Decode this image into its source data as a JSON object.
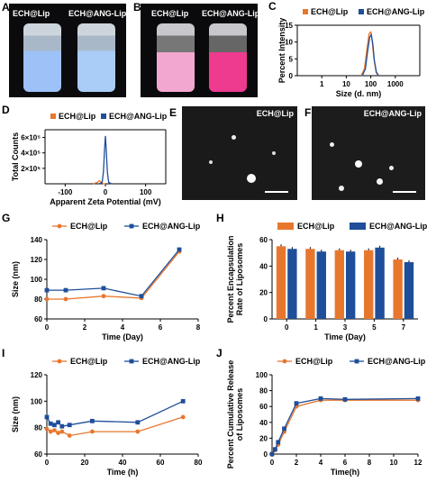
{
  "colors": {
    "lip": "#e8772e",
    "ang": "#1f4e9a"
  },
  "panels": {
    "A": {
      "letter": "A",
      "label_lip": "ECH@Lip",
      "label_ang": "ECH@ANG-Lip"
    },
    "B": {
      "letter": "B",
      "label_lip": "ECH@Lip",
      "label_ang": "ECH@ANG-Lip"
    },
    "E": {
      "letter": "E",
      "label": "ECH@Lip"
    },
    "F": {
      "letter": "F",
      "label": "ECH@ANG-Lip"
    }
  },
  "chart_data": [
    {
      "id": "C",
      "letter": "C",
      "type": "line",
      "xlabel": "Size (d. nm)",
      "ylabel": "Percent Intensity",
      "xscale": "log",
      "xlim": [
        0.1,
        10000
      ],
      "ylim": [
        0,
        15
      ],
      "xticks": [
        1,
        10,
        100,
        1000
      ],
      "xtick_labels": [
        "1",
        "10",
        "100",
        "1000"
      ],
      "yticks": [
        0,
        5,
        10,
        15
      ],
      "ytick_labels": [
        "0",
        "5",
        "10",
        "15"
      ],
      "legend": "top",
      "series": [
        {
          "name": "ECH@Lip",
          "x": [
            40,
            55,
            70,
            85,
            100,
            115,
            135,
            165,
            200
          ],
          "values": [
            0,
            2,
            8,
            12.5,
            13,
            10,
            5,
            1,
            0
          ]
        },
        {
          "name": "ECH@ANG-Lip",
          "x": [
            45,
            60,
            75,
            90,
            105,
            120,
            140,
            170,
            210
          ],
          "values": [
            0,
            2,
            7.5,
            11.5,
            12.2,
            9.5,
            4.5,
            1,
            0
          ]
        }
      ]
    },
    {
      "id": "D",
      "letter": "D",
      "type": "line",
      "xlabel": "Apparent Zeta Potential (mV)",
      "ylabel": "Total Counts",
      "xlim": [
        -150,
        150
      ],
      "ylim": [
        0,
        700000
      ],
      "xticks": [
        -100,
        0,
        100
      ],
      "xtick_labels": [
        "-100",
        "0",
        "100"
      ],
      "yticks": [
        200000,
        400000,
        600000
      ],
      "ytick_labels": [
        "2×10⁵",
        "4×10⁵",
        "6×10⁵"
      ],
      "legend": "top",
      "series": [
        {
          "name": "ECH@Lip",
          "x": [
            -30,
            -20,
            -15,
            -10,
            -5,
            0
          ],
          "values": [
            0,
            20000,
            40000,
            20000,
            0,
            0
          ]
        },
        {
          "name": "ECH@ANG-Lip",
          "x": [
            -15,
            -8,
            -5,
            -2,
            0,
            2,
            5,
            8,
            15
          ],
          "values": [
            0,
            20000,
            150000,
            450000,
            620000,
            450000,
            150000,
            20000,
            0
          ]
        }
      ]
    },
    {
      "id": "G",
      "letter": "G",
      "type": "line",
      "xlabel": "Time (Day)",
      "ylabel": "Size (nm)",
      "xlim": [
        0,
        8
      ],
      "ylim": [
        60,
        140
      ],
      "xticks": [
        0,
        2,
        4,
        6,
        8
      ],
      "xtick_labels": [
        "0",
        "2",
        "4",
        "6",
        "8"
      ],
      "yticks": [
        60,
        80,
        100,
        120,
        140
      ],
      "ytick_labels": [
        "60",
        "80",
        "100",
        "120",
        "140"
      ],
      "legend": "top",
      "series": [
        {
          "name": "ECH@Lip",
          "x": [
            0,
            1,
            3,
            5,
            7
          ],
          "values": [
            80,
            80,
            83,
            81,
            128
          ]
        },
        {
          "name": "ECH@ANG-Lip",
          "x": [
            0,
            1,
            3,
            5,
            7
          ],
          "values": [
            89,
            89,
            91,
            83,
            130
          ]
        }
      ]
    },
    {
      "id": "H",
      "letter": "H",
      "type": "bar",
      "xlabel": "Time (Day)",
      "ylabel": "Percent Encapsulation Rate of Liposomes",
      "ylim": [
        0,
        60
      ],
      "yticks": [
        0,
        20,
        40,
        60
      ],
      "ytick_labels": [
        "0",
        "20",
        "40",
        "60"
      ],
      "categories": [
        "0",
        "1",
        "3",
        "5",
        "7"
      ],
      "legend": "top",
      "series": [
        {
          "name": "ECH@Lip",
          "values": [
            55,
            53,
            52,
            52,
            45
          ]
        },
        {
          "name": "ECH@ANG-Lip",
          "values": [
            53,
            51,
            51,
            54,
            43
          ]
        }
      ]
    },
    {
      "id": "I",
      "letter": "I",
      "type": "line",
      "xlabel": "Time (h)",
      "ylabel": "Size (nm)",
      "xlim": [
        0,
        80
      ],
      "ylim": [
        60,
        120
      ],
      "xticks": [
        0,
        20,
        40,
        60,
        80
      ],
      "xtick_labels": [
        "0",
        "20",
        "40",
        "60",
        "80"
      ],
      "yticks": [
        60,
        80,
        100,
        120
      ],
      "ytick_labels": [
        "60",
        "80",
        "100",
        "120"
      ],
      "legend": "top",
      "series": [
        {
          "name": "ECH@Lip",
          "x": [
            0,
            2,
            4,
            6,
            8,
            12,
            24,
            48,
            72
          ],
          "values": [
            79,
            77,
            78,
            76,
            77,
            74,
            77,
            77,
            88
          ]
        },
        {
          "name": "ECH@ANG-Lip",
          "x": [
            0,
            2,
            4,
            6,
            8,
            12,
            24,
            48,
            72
          ],
          "values": [
            88,
            83,
            82,
            84,
            81,
            82,
            85,
            84,
            100
          ]
        }
      ]
    },
    {
      "id": "J",
      "letter": "J",
      "type": "line",
      "xlabel": "Time(h)",
      "ylabel": "Percent Cumulative Release of Liposomes",
      "xlim": [
        0,
        12
      ],
      "ylim": [
        0,
        100
      ],
      "xticks": [
        0,
        2,
        4,
        6,
        8,
        10,
        12
      ],
      "xtick_labels": [
        "0",
        "2",
        "4",
        "6",
        "8",
        "10",
        "12"
      ],
      "yticks": [
        0,
        20,
        40,
        60,
        80,
        100
      ],
      "ytick_labels": [
        "0",
        "20",
        "40",
        "60",
        "80",
        "100"
      ],
      "legend": "top",
      "series": [
        {
          "name": "ECH@Lip",
          "x": [
            0,
            0.25,
            0.5,
            1,
            2,
            4,
            6,
            12
          ],
          "values": [
            0,
            5,
            12,
            28,
            60,
            68,
            68,
            68
          ]
        },
        {
          "name": "ECH@ANG-Lip",
          "x": [
            0,
            0.25,
            0.5,
            1,
            2,
            4,
            6,
            12
          ],
          "values": [
            0,
            6,
            15,
            32,
            64,
            70,
            69,
            70
          ]
        }
      ]
    }
  ]
}
